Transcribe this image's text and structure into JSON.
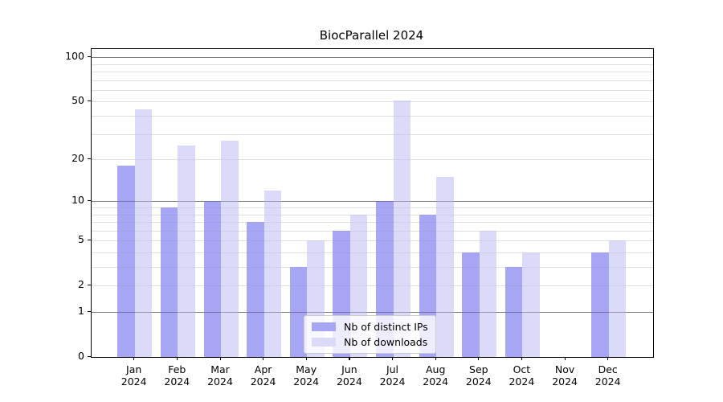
{
  "chart_data": {
    "type": "bar",
    "title": "BiocParallel 2024",
    "categories": [
      "Jan 2024",
      "Feb 2024",
      "Mar 2024",
      "Apr 2024",
      "May 2024",
      "Jun 2024",
      "Jul 2024",
      "Aug 2024",
      "Sep 2024",
      "Oct 2024",
      "Nov 2024",
      "Dec 2024"
    ],
    "series": [
      {
        "name": "Nb of distinct IPs",
        "color": "#a6a6f4",
        "values": [
          18,
          9,
          10,
          7,
          3,
          6,
          10,
          8,
          4,
          3,
          0,
          4
        ]
      },
      {
        "name": "Nb of downloads",
        "color": "#dbdbf9",
        "values": [
          44,
          25,
          27,
          12,
          5,
          8,
          51,
          15,
          6,
          4,
          0,
          5
        ]
      }
    ],
    "xlabel": "",
    "ylabel": "",
    "yscale": "log1p",
    "ylim": [
      0,
      113
    ],
    "ytick_labels": [
      "100",
      "50",
      "20",
      "10",
      "5",
      "2",
      "1",
      "0"
    ],
    "yticks": [
      100,
      50,
      20,
      10,
      5,
      2,
      1,
      0
    ],
    "major_gridlines": [
      1,
      10,
      100
    ],
    "minor_gridlines": [
      2,
      3,
      4,
      5,
      6,
      7,
      8,
      9,
      20,
      30,
      40,
      50,
      60,
      70,
      80,
      90
    ],
    "grid": true,
    "legend_position": "lower center"
  },
  "colors": {
    "background": "#ffffff",
    "spine": "#000000",
    "major_grid": "#b3b3b3",
    "minor_grid": "#ececec",
    "bar_distinct_ips": "#a6a6f4",
    "bar_downloads": "#dbdbf9"
  }
}
